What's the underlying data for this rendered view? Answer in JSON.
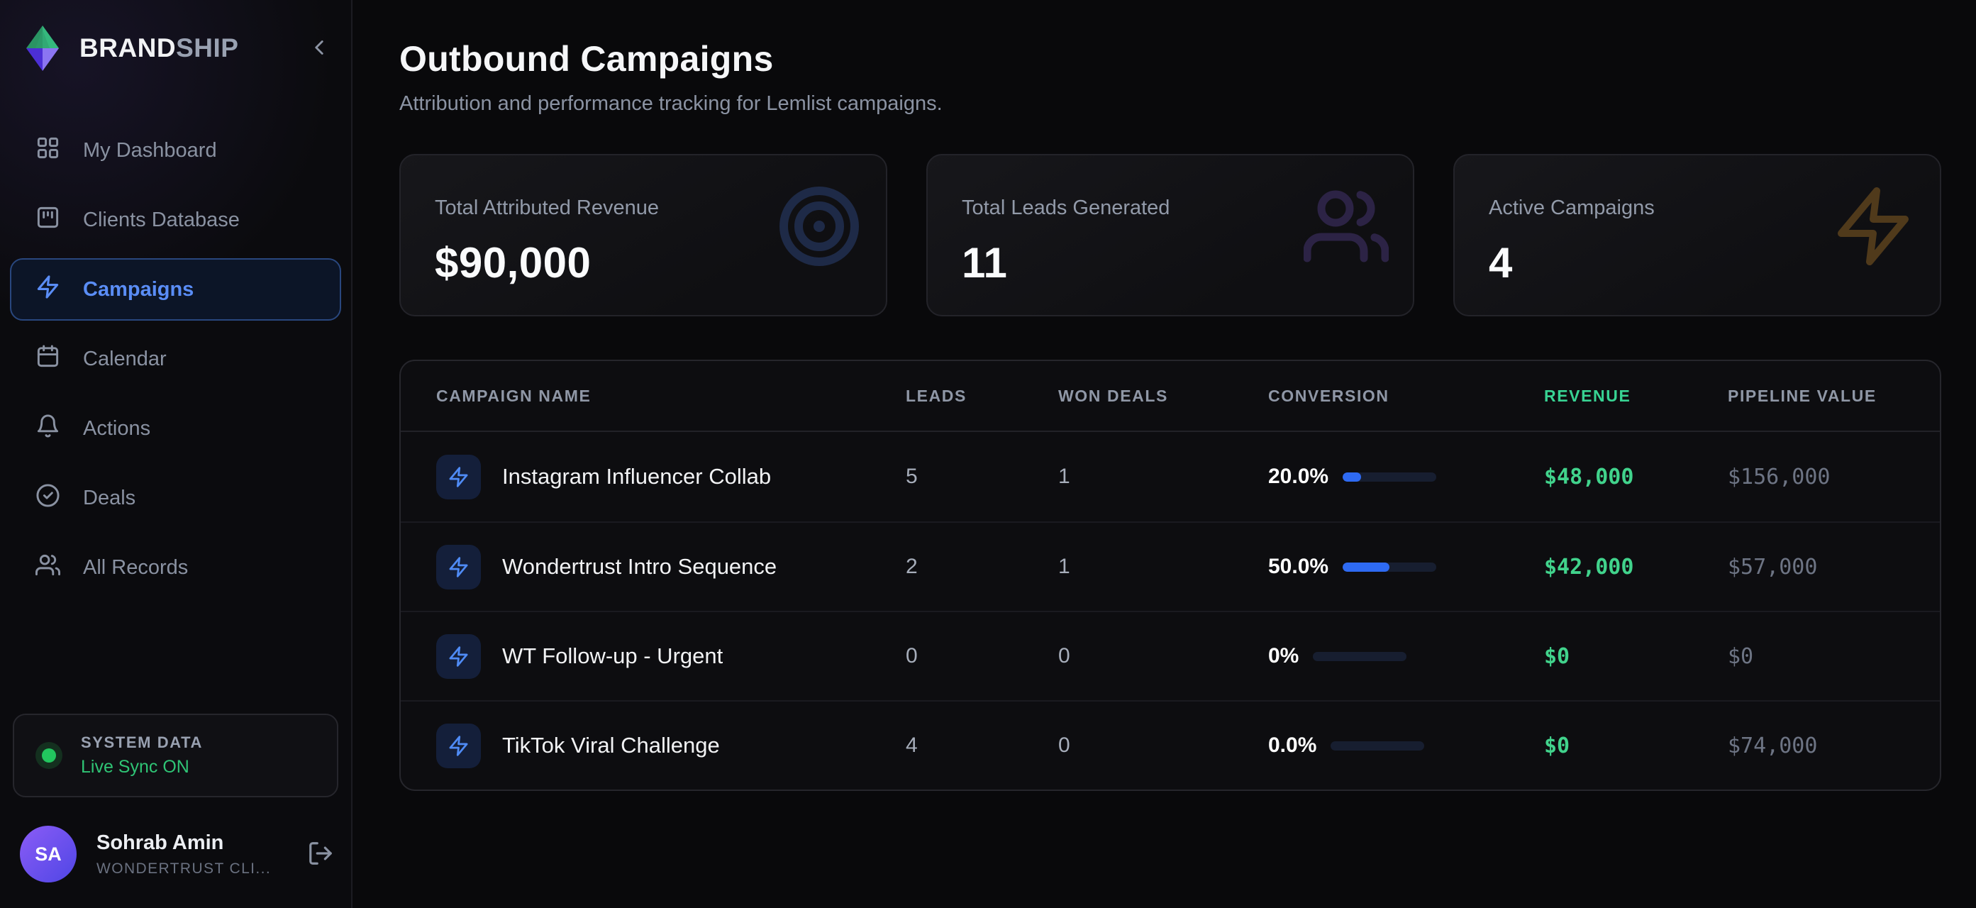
{
  "app": {
    "brand": {
      "bold": "BRAND",
      "light": "SHIP"
    }
  },
  "sidebar": {
    "items": [
      {
        "label": "My Dashboard"
      },
      {
        "label": "Clients Database"
      },
      {
        "label": "Campaigns"
      },
      {
        "label": "Calendar"
      },
      {
        "label": "Actions"
      },
      {
        "label": "Deals"
      },
      {
        "label": "All Records"
      }
    ],
    "system": {
      "title": "SYSTEM DATA",
      "status": "Live Sync ON"
    },
    "user": {
      "initials": "SA",
      "name": "Sohrab Amin",
      "org": "WONDERTRUST CLI..."
    }
  },
  "header": {
    "title": "Outbound Campaigns",
    "subtitle": "Attribution and performance tracking for Lemlist campaigns."
  },
  "stats": [
    {
      "label": "Total Attributed Revenue",
      "value": "$90,000",
      "icon": "target-icon"
    },
    {
      "label": "Total Leads Generated",
      "value": "11",
      "icon": "users-icon"
    },
    {
      "label": "Active Campaigns",
      "value": "4",
      "icon": "bolt-icon"
    }
  ],
  "table": {
    "columns": [
      "CAMPAIGN NAME",
      "LEADS",
      "WON DEALS",
      "CONVERSION",
      "REVENUE",
      "PIPELINE VALUE"
    ],
    "rows": [
      {
        "name": "Instagram Influencer Collab",
        "leads": "5",
        "won": "1",
        "conversion": "20.0%",
        "conversion_pct": 20,
        "revenue": "$48,000",
        "pipeline": "$156,000"
      },
      {
        "name": "Wondertrust Intro Sequence",
        "leads": "2",
        "won": "1",
        "conversion": "50.0%",
        "conversion_pct": 50,
        "revenue": "$42,000",
        "pipeline": "$57,000"
      },
      {
        "name": "WT Follow-up - Urgent",
        "leads": "0",
        "won": "0",
        "conversion": "0%",
        "conversion_pct": 0,
        "revenue": "$0",
        "pipeline": "$0"
      },
      {
        "name": "TikTok Viral Challenge",
        "leads": "4",
        "won": "0",
        "conversion": "0.0%",
        "conversion_pct": 0,
        "revenue": "$0",
        "pipeline": "$74,000"
      }
    ]
  },
  "colors": {
    "accent_blue": "#4f8bf5",
    "accent_green": "#38d393",
    "money_green": "#41d38c",
    "progress_fill": "#2e6af2",
    "status_green": "#22c55e",
    "avatar_grad_start": "#8b5cf6",
    "avatar_grad_end": "#4f46e5"
  }
}
